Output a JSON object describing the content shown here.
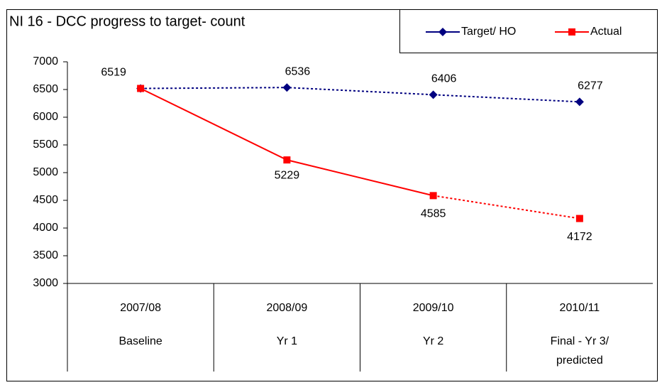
{
  "chart_data": {
    "type": "line",
    "title": "NI 16 - DCC progress to target- count",
    "categories": [
      "2007/08",
      "2008/09",
      "2009/10",
      "2010/11"
    ],
    "category_sublabels": [
      "Baseline",
      "Yr 1",
      "Yr 2",
      [
        "Final - Yr 3/",
        "predicted"
      ]
    ],
    "series": [
      {
        "name": "Target/ HO",
        "color": "#000080",
        "marker": "diamond",
        "line_style": "dotted",
        "values": [
          6519,
          6536,
          6406,
          6277
        ],
        "labeled": [
          false,
          true,
          true,
          true
        ]
      },
      {
        "name": "Actual",
        "color": "#ff0000",
        "marker": "square",
        "line_style": "solid",
        "projected_from": 2,
        "values": [
          6519,
          5229,
          4585,
          4172
        ],
        "labeled": [
          true,
          true,
          true,
          true
        ]
      }
    ],
    "ylim": [
      3000,
      7000
    ],
    "yticks": [
      3000,
      3500,
      4000,
      4500,
      5000,
      5500,
      6000,
      6500,
      7000
    ],
    "legend": "top-right"
  }
}
